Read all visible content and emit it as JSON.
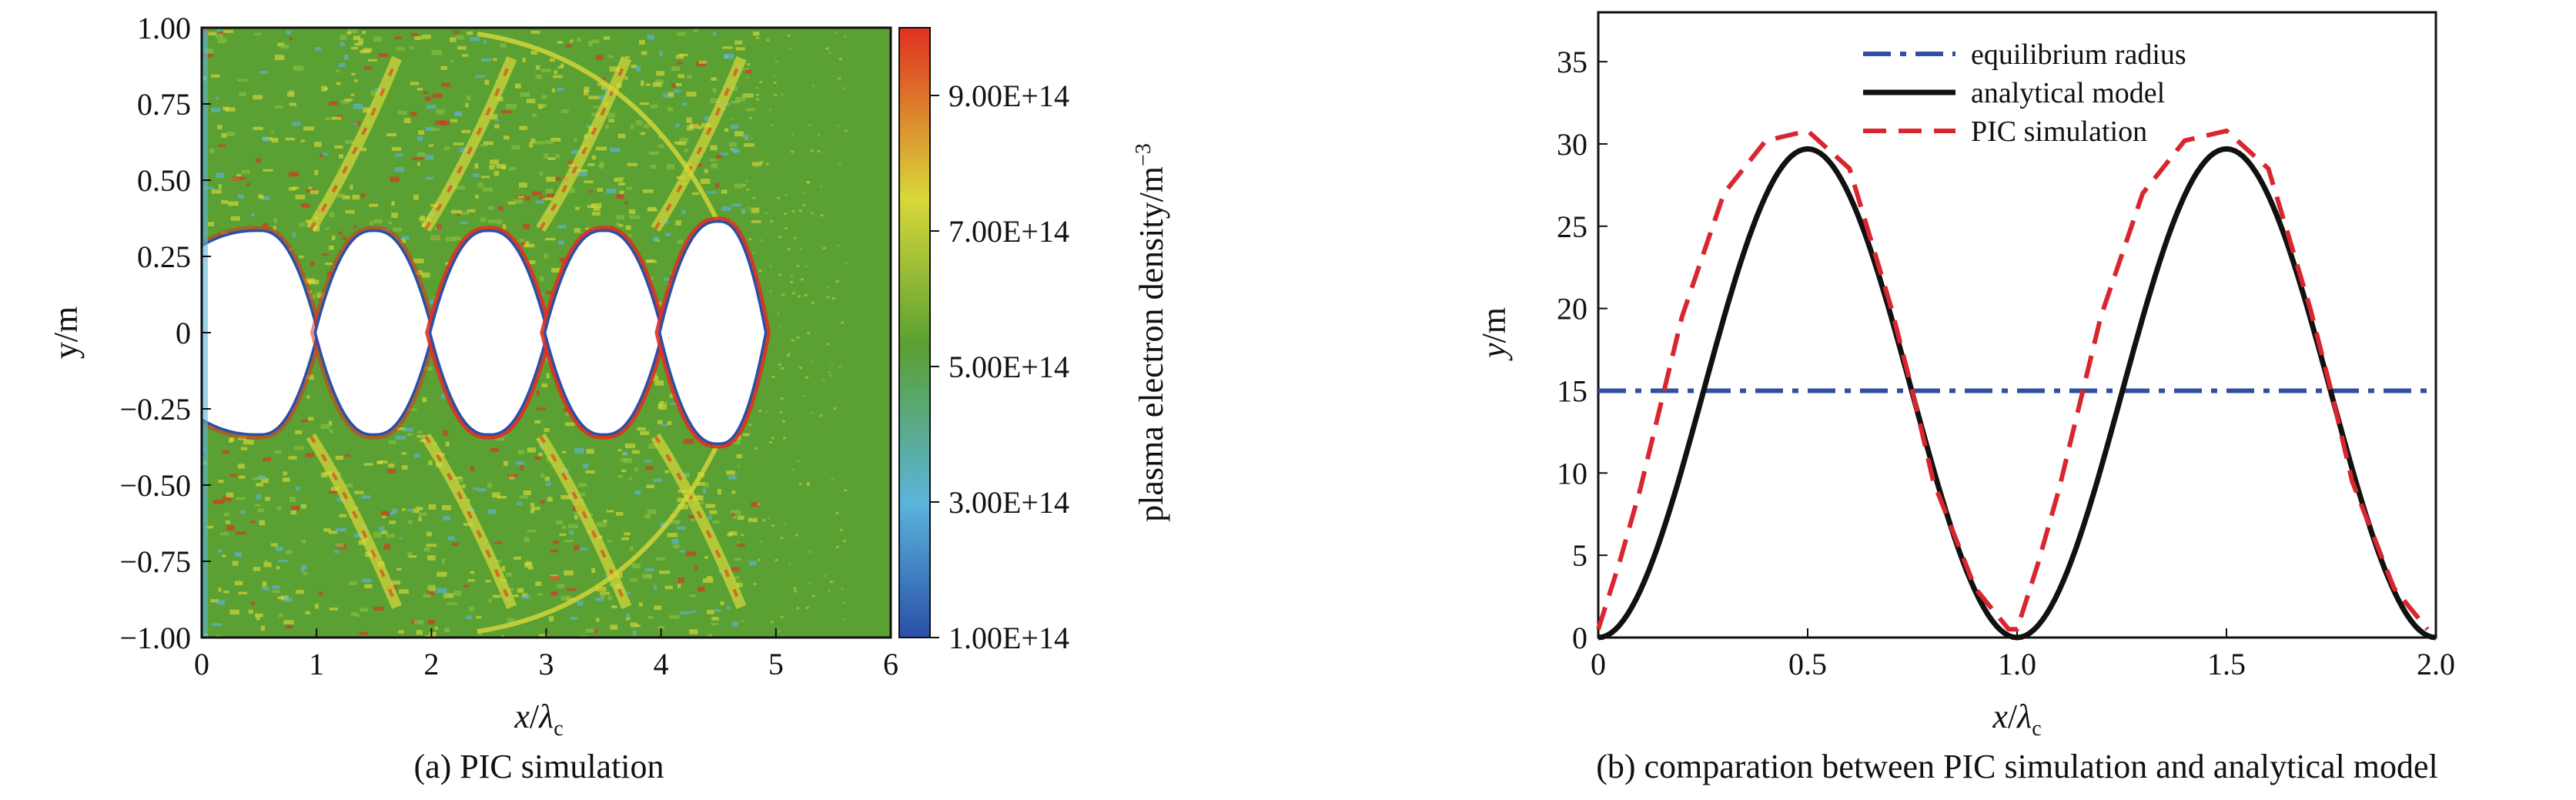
{
  "panel_a": {
    "caption": "(a) PIC simulation",
    "colorbar_label": "plasma electron density/m",
    "colorbar_label_sup": "−3",
    "colorbar_ticks": [
      "1.00E+14",
      "3.00E+14",
      "5.00E+14",
      "7.00E+14",
      "9.00E+14"
    ],
    "xlabel_main": "x",
    "xlabel_sub": "c",
    "ylabel": "y/m"
  },
  "panel_b": {
    "caption": "(b) comparation between PIC simulation and analytical model",
    "xlabel_main": "x",
    "xlabel_sub": "c",
    "ylabel": "y/m"
  },
  "chart_data": [
    {
      "type": "heatmap",
      "title": "",
      "x_ticks": [
        "0",
        "1",
        "2",
        "3",
        "4",
        "5",
        "6"
      ],
      "y_ticks": [
        "1.00",
        "0.75",
        "0.50",
        "0.25",
        "0",
        "−0.25",
        "−0.50",
        "−0.75",
        "−1.00"
      ],
      "xlim": [
        0,
        6
      ],
      "ylim": [
        -1.0,
        1.0
      ],
      "colorbar": {
        "min": 100000000000000.0,
        "max": 1000000000000000.0,
        "colors": [
          "#2a4fa8",
          "#5ab4dc",
          "#5aa032",
          "#d8d83a",
          "#e03020"
        ]
      },
      "background_density": 550000000000000.0,
      "cavity": {
        "description": "electron-free bubbles along axis",
        "centers_x": [
          0.5,
          1.5,
          2.5,
          3.5,
          4.5
        ],
        "half_height": 0.33,
        "ends_x": [
          4.9
        ]
      }
    },
    {
      "type": "line",
      "title": "",
      "xlim": [
        0,
        2.0
      ],
      "ylim": [
        0,
        38
      ],
      "x_ticks": [
        "0",
        "0.5",
        "1.0",
        "1.5",
        "2.0"
      ],
      "y_ticks": [
        "0",
        "5",
        "10",
        "15",
        "20",
        "25",
        "30",
        "35"
      ],
      "legend_position": "top-center",
      "series": [
        {
          "name": "equilibrium radius",
          "color": "#2f4fa0",
          "style": "dash-dot",
          "x": [
            0,
            2.0
          ],
          "y": [
            15,
            15
          ]
        },
        {
          "name": "analytical model",
          "color": "#111111",
          "style": "solid",
          "x": [
            0,
            0.1,
            0.2,
            0.3,
            0.4,
            0.5,
            0.6,
            0.7,
            0.8,
            0.9,
            1.0,
            1.1,
            1.2,
            1.3,
            1.4,
            1.5,
            1.6,
            1.7,
            1.8,
            1.9,
            2.0
          ],
          "y": [
            0,
            2.8,
            10.3,
            19.4,
            26.9,
            29.7,
            26.9,
            19.4,
            10.3,
            2.8,
            0,
            2.8,
            10.3,
            19.4,
            26.9,
            29.7,
            26.9,
            19.4,
            10.3,
            2.8,
            0
          ]
        },
        {
          "name": "PIC simulation",
          "color": "#d8262e",
          "style": "dashed",
          "x": [
            0,
            0.05,
            0.1,
            0.2,
            0.3,
            0.4,
            0.5,
            0.6,
            0.7,
            0.75,
            0.8,
            0.9,
            0.98,
            1.0,
            1.05,
            1.1,
            1.2,
            1.3,
            1.4,
            1.5,
            1.6,
            1.7,
            1.75,
            1.8,
            1.9,
            1.98
          ],
          "y": [
            0.5,
            4.5,
            9.0,
            19.5,
            27.0,
            30.2,
            30.8,
            28.5,
            20.0,
            15.0,
            9.5,
            3.0,
            0.5,
            0.5,
            4.5,
            9.0,
            19.5,
            27.0,
            30.2,
            30.8,
            28.5,
            20.0,
            15.0,
            9.5,
            3.0,
            0.5
          ]
        }
      ]
    }
  ]
}
